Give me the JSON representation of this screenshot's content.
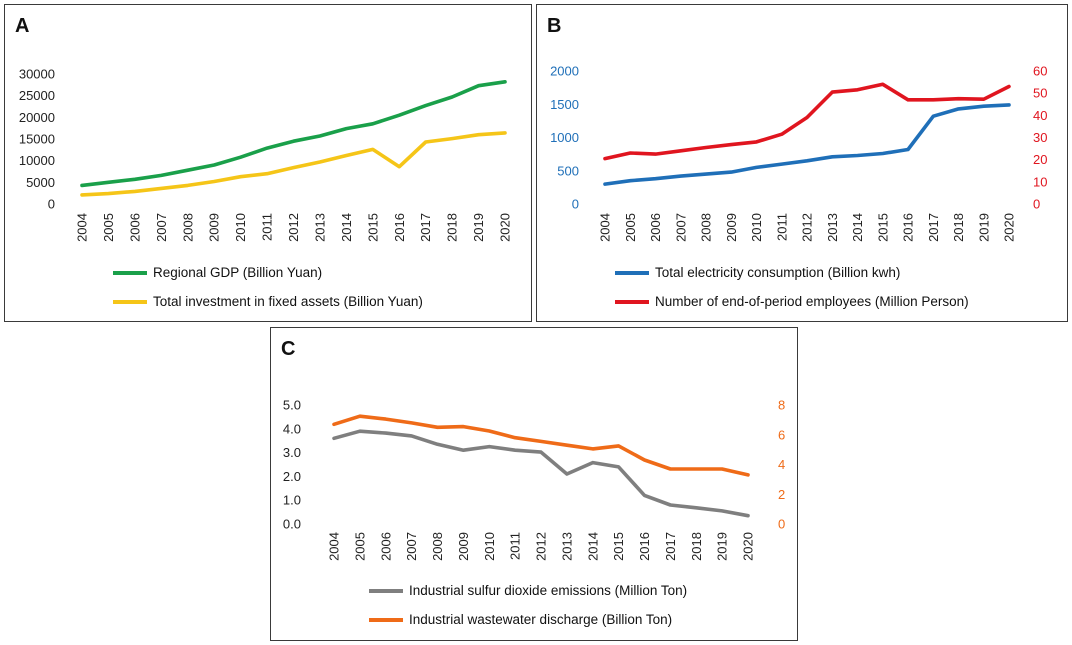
{
  "colors": {
    "gdp": "#1aa04a",
    "investment": "#f5c518",
    "electricity": "#1f6fb8",
    "employees": "#e0151f",
    "sulfur": "#7f7f7f",
    "wastewater": "#ef6b18",
    "axis_default": "#222222"
  },
  "chart_data": [
    {
      "panel": "A",
      "type": "line",
      "x": [
        "2004",
        "2005",
        "2006",
        "2007",
        "2008",
        "2009",
        "2010",
        "2011",
        "2012",
        "2013",
        "2014",
        "2015",
        "2016",
        "2017",
        "2018",
        "2019",
        "2020"
      ],
      "series": [
        {
          "name": "Regional GDP (Billion Yuan)",
          "axis": "left",
          "color_key": "gdp",
          "values": [
            4300,
            5000,
            5700,
            6600,
            7800,
            9000,
            10800,
            12900,
            14500,
            15700,
            17400,
            18500,
            20500,
            22700,
            24700,
            27300,
            28200
          ]
        },
        {
          "name": "Total investment in fixed assets (Billion Yuan)",
          "axis": "left",
          "color_key": "investment",
          "values": [
            2100,
            2400,
            2900,
            3600,
            4300,
            5200,
            6300,
            7000,
            8400,
            9700,
            11200,
            12600,
            8600,
            14300,
            15100,
            16000,
            16400
          ]
        }
      ],
      "y_left": {
        "ticks": [
          "0",
          "5000",
          "10000",
          "15000",
          "20000",
          "25000",
          "30000"
        ],
        "min": 0,
        "max": 30000
      },
      "legend": "bottom-left"
    },
    {
      "panel": "B",
      "type": "line",
      "x": [
        "2004",
        "2005",
        "2006",
        "2007",
        "2008",
        "2009",
        "2010",
        "2011",
        "2012",
        "2013",
        "2014",
        "2015",
        "2016",
        "2017",
        "2018",
        "2019",
        "2020"
      ],
      "series": [
        {
          "name": "Total electricity consumption (Billion kwh)",
          "axis": "left",
          "color_key": "electricity",
          "values": [
            300,
            350,
            380,
            420,
            450,
            480,
            550,
            600,
            650,
            710,
            730,
            760,
            820,
            1320,
            1430,
            1470,
            1490
          ]
        },
        {
          "name": "Number of end-of-period employees (Million Person)",
          "axis": "right",
          "color_key": "employees",
          "values": [
            20.5,
            23,
            22.5,
            24,
            25.5,
            26.8,
            28,
            31.5,
            39,
            50.5,
            51.5,
            54,
            47,
            47,
            47.5,
            47.3,
            53
          ]
        }
      ],
      "y_left": {
        "ticks": [
          "0",
          "500",
          "1000",
          "1500",
          "2000"
        ],
        "min": 0,
        "max": 2000
      },
      "y_right": {
        "ticks": [
          "0",
          "10",
          "20",
          "30",
          "40",
          "50",
          "60"
        ],
        "min": 0,
        "max": 60
      },
      "legend": "bottom-left"
    },
    {
      "panel": "C",
      "type": "line",
      "x": [
        "2004",
        "2005",
        "2006",
        "2007",
        "2008",
        "2009",
        "2010",
        "2011",
        "2012",
        "2013",
        "2014",
        "2015",
        "2016",
        "2017",
        "2018",
        "2019",
        "2020"
      ],
      "series": [
        {
          "name": "Industrial sulfur dioxide emissions (Million Ton)",
          "axis": "left",
          "color_key": "sulfur",
          "values": [
            3.6,
            3.9,
            3.82,
            3.7,
            3.35,
            3.1,
            3.25,
            3.1,
            3.02,
            2.1,
            2.58,
            2.4,
            1.2,
            0.8,
            0.68,
            0.55,
            0.35
          ]
        },
        {
          "name": "Industrial wastewater discharge (Billion Ton)",
          "axis": "right",
          "color_key": "wastewater",
          "values": [
            6.7,
            7.25,
            7.05,
            6.8,
            6.5,
            6.55,
            6.25,
            5.8,
            5.55,
            5.3,
            5.05,
            5.25,
            4.3,
            3.7,
            3.7,
            3.7,
            3.3
          ]
        }
      ],
      "y_left": {
        "ticks": [
          "0.0",
          "1.0",
          "2.0",
          "3.0",
          "4.0",
          "5.0"
        ],
        "min": 0,
        "max": 5
      },
      "y_right": {
        "ticks": [
          "0",
          "2",
          "4",
          "6",
          "8"
        ],
        "min": 0,
        "max": 8
      },
      "legend": "bottom-left"
    }
  ],
  "panels": {
    "A": {
      "label": "A"
    },
    "B": {
      "label": "B"
    },
    "C": {
      "label": "C"
    }
  }
}
